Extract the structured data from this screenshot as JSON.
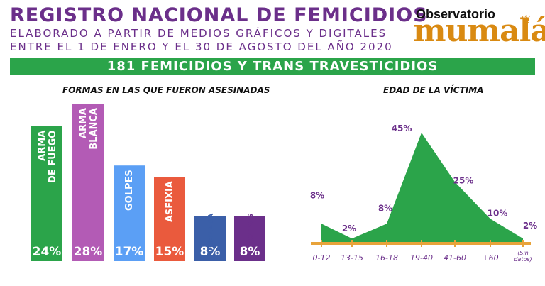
{
  "header": {
    "title": "REGISTRO NACIONAL DE FEMICIDIOS",
    "subtitle_line1": "ELABORADO A PARTIR DE MEDIOS GRÁFICOS Y DIGITALES",
    "subtitle_line2": "ENTRE EL 1 DE ENERO Y EL 30 DE AGOSTO DEL AÑO 2020",
    "banner": "181 FEMICIDIOS Y TRANS TRAVESTICIDIOS"
  },
  "logo": {
    "top": "Observatorio",
    "main": "mumalá"
  },
  "colors": {
    "title": "#6b2f8a",
    "banner": "#2ba44a",
    "area_fill": "#2ba44a",
    "axis": "#e8a33a",
    "point_label": "#6b2f8a"
  },
  "chart_data": [
    {
      "type": "bar",
      "title": "FORMAS EN LAS QUE FUERON ASESINADAS",
      "categories": [
        "ARMA DE FUEGO",
        "ARMA BLANCA",
        "GOLPES",
        "ASFIXIA",
        "QUEMADA",
        "OTRAS"
      ],
      "category_lines": [
        [
          "ARMA",
          "DE FUEGO"
        ],
        [
          "ARMA",
          "BLANCA"
        ],
        [
          "GOLPES"
        ],
        [
          "ASFIXIA"
        ],
        [
          "QUEMADA"
        ],
        [
          "OTRAS"
        ]
      ],
      "values": [
        24,
        28,
        17,
        15,
        8,
        8
      ],
      "value_labels": [
        "24%",
        "28%",
        "17%",
        "15%",
        "8%",
        "8%"
      ],
      "colors": [
        "#2ba44a",
        "#b35bb5",
        "#5b9ff5",
        "#ea5a3d",
        "#3b5fa8",
        "#6b2f8a"
      ],
      "unit": "%",
      "ylim": [
        0,
        30
      ]
    },
    {
      "type": "area",
      "title": "EDAD DE LA VÍCTIMA",
      "categories": [
        "0-12",
        "13-15",
        "16-18",
        "19-40",
        "41-60",
        "+60",
        "(Sin datos)"
      ],
      "category_lines": [
        [
          "0-12"
        ],
        [
          "13-15"
        ],
        [
          "16-18"
        ],
        [
          "19-40"
        ],
        [
          "41-60"
        ],
        [
          "+60"
        ],
        [
          "(Sin",
          "datos)"
        ]
      ],
      "values": [
        8,
        2,
        8,
        45,
        25,
        10,
        2
      ],
      "value_labels": [
        "8%",
        "2%",
        "8%",
        "45%",
        "25%",
        "10%",
        "2%"
      ],
      "unit": "%",
      "ylim": [
        0,
        45
      ]
    }
  ]
}
